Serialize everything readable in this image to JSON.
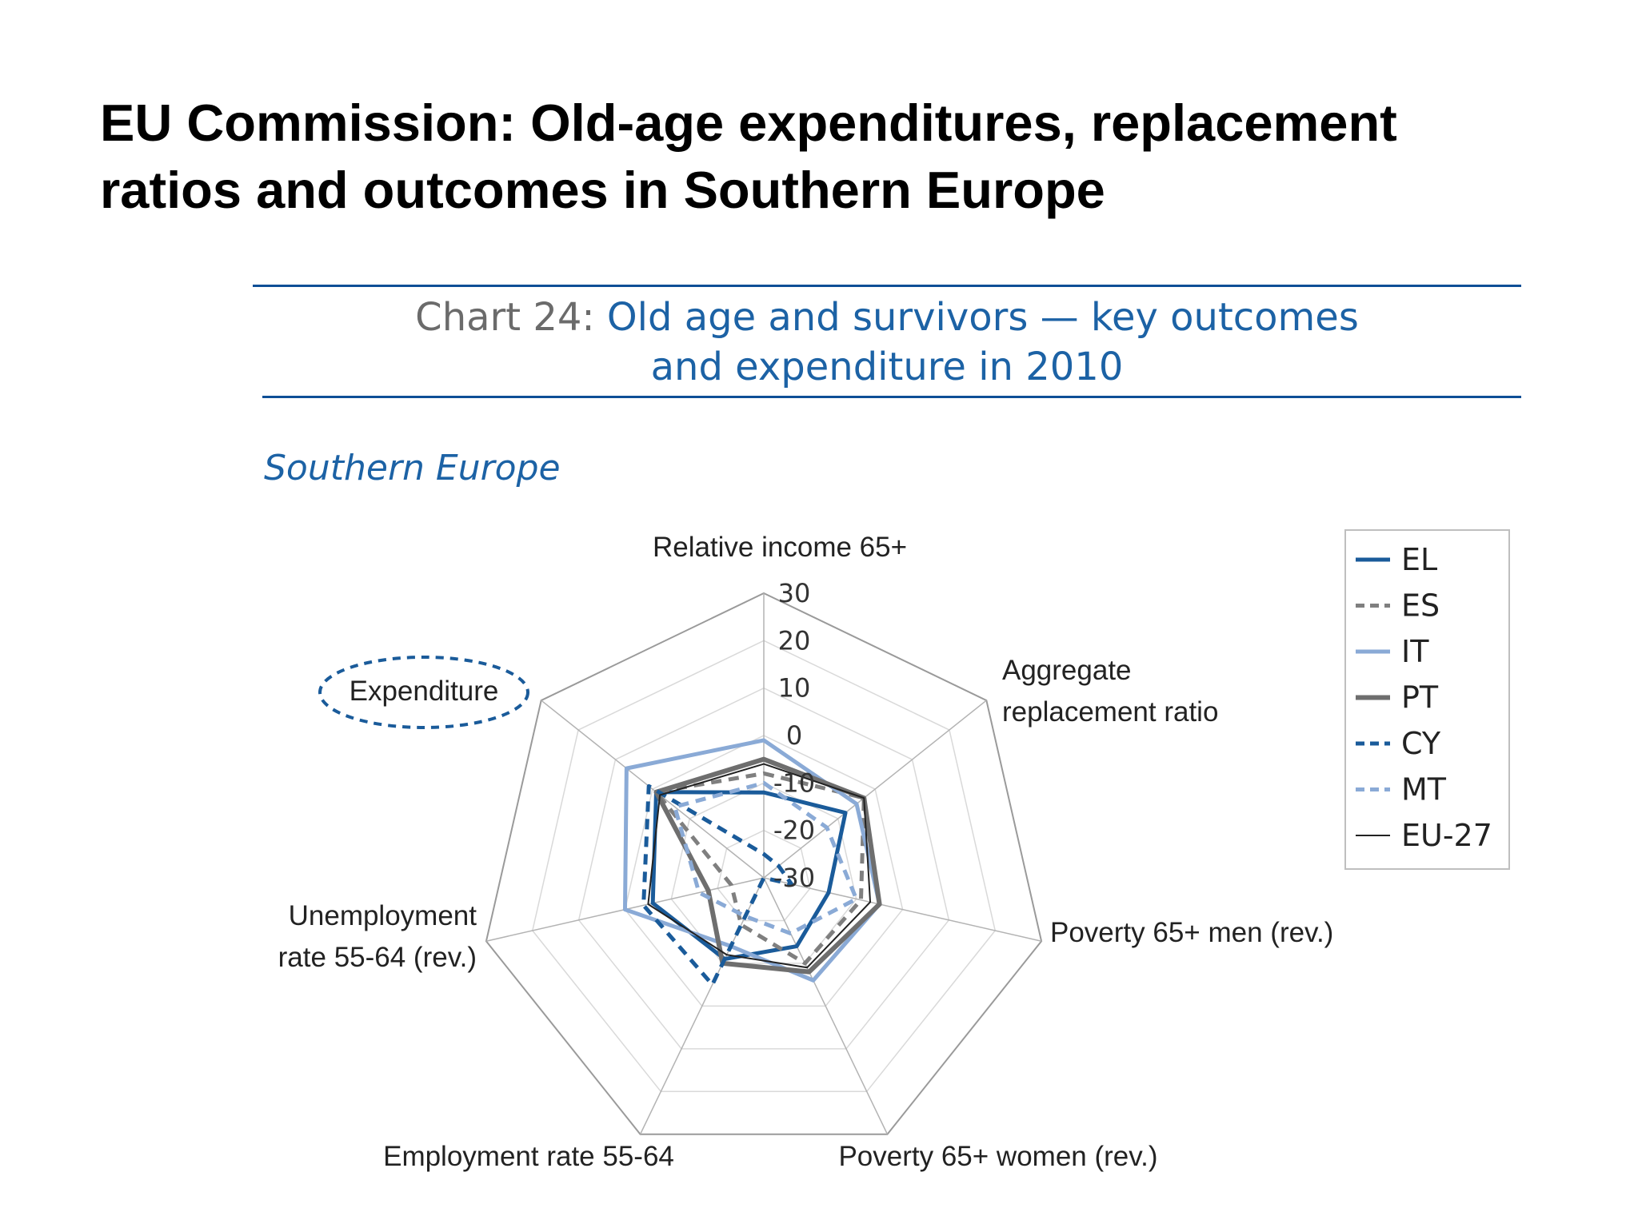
{
  "slide_title_line1": "EU Commission: Old-age expenditures, replacement",
  "slide_title_line2": "ratios and outcomes in Southern Europe",
  "chart_number": "Chart 24",
  "chart_heading_line1": "Old age and survivors — key outcomes",
  "chart_heading_line2": "and expenditure in 2010",
  "region_title": "Southern Europe",
  "chart_data": {
    "type": "radar",
    "axes": [
      "Relative income 65+",
      "Aggregate replacement ratio",
      "Poverty 65+ men (rev.)",
      "Poverty 65+ women (rev.)",
      "Employment rate 55-64",
      "Unemployment rate 55-64 (rev.)",
      "Expenditure"
    ],
    "axis_label_lines": [
      [
        "Relative income 65+"
      ],
      [
        "Aggregate",
        "replacement ratio"
      ],
      [
        "Poverty 65+ men (rev.)"
      ],
      [
        "Poverty 65+ women (rev.)"
      ],
      [
        "Employment rate 55-64"
      ],
      [
        "Unemployment",
        "rate 55-64 (rev.)"
      ],
      [
        "Expenditure"
      ]
    ],
    "highlighted_axis": "Expenditure",
    "ticks": [
      30,
      20,
      10,
      0,
      -10,
      -20,
      -30
    ],
    "tick_labels": [
      "30",
      "20",
      "10",
      "0",
      "-10",
      "-20",
      "-30"
    ],
    "rlim": [
      -30,
      30
    ],
    "legend_position": "right",
    "series": [
      {
        "name": "EL",
        "color": "#1a5b9a",
        "dash": "solid",
        "width": 5,
        "values": [
          -12,
          -8,
          -16,
          -14,
          -11,
          -6,
          -1
        ]
      },
      {
        "name": "ES",
        "color": "#7f7f7f",
        "dash": "dashed",
        "width": 5,
        "values": [
          -8,
          -3,
          -9,
          -10,
          -19,
          -23,
          -1
        ]
      },
      {
        "name": "IT",
        "color": "#8aaad6",
        "dash": "solid",
        "width": 5,
        "values": [
          -1,
          -5,
          -5,
          -6,
          -14,
          0,
          7
        ]
      },
      {
        "name": "PT",
        "color": "#6e6e6e",
        "dash": "solid",
        "width": 6,
        "values": [
          -5,
          -3,
          -5,
          -8,
          -10,
          -18,
          -1
        ]
      },
      {
        "name": "CY",
        "color": "#1a5b9a",
        "dash": "dashed",
        "width": 5,
        "values": [
          -25,
          -26,
          -24,
          -30,
          -5,
          -4,
          1
        ]
      },
      {
        "name": "MT",
        "color": "#8aaad6",
        "dash": "dashed",
        "width": 5,
        "values": [
          -10,
          -13,
          -10,
          -17,
          -21,
          -16,
          -6
        ]
      },
      {
        "name": "EU-27",
        "color": "#222222",
        "dash": "solid",
        "width": 2,
        "values": [
          -6,
          -3,
          -7,
          -9,
          -12,
          -5,
          -2
        ]
      }
    ]
  }
}
